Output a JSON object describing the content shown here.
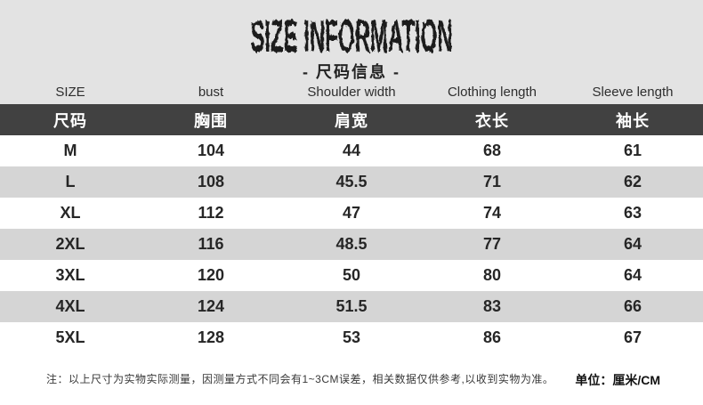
{
  "header": {
    "title": "SIZE INFORMATION",
    "subtitle": "- 尺码信息 -"
  },
  "chart_data": {
    "type": "table",
    "title": "SIZE INFORMATION",
    "subtitle_cn": "尺码信息",
    "columns_en": [
      "SIZE",
      "bust",
      "Shoulder width",
      "Clothing length",
      "Sleeve length"
    ],
    "columns_cn": [
      "尺码",
      "胸围",
      "肩宽",
      "衣长",
      "袖长"
    ],
    "rows": [
      [
        "M",
        "104",
        "44",
        "68",
        "61"
      ],
      [
        "L",
        "108",
        "45.5",
        "71",
        "62"
      ],
      [
        "XL",
        "112",
        "47",
        "74",
        "63"
      ],
      [
        "2XL",
        "116",
        "48.5",
        "77",
        "64"
      ],
      [
        "3XL",
        "120",
        "50",
        "80",
        "64"
      ],
      [
        "4XL",
        "124",
        "51.5",
        "83",
        "66"
      ],
      [
        "5XL",
        "128",
        "53",
        "86",
        "67"
      ]
    ],
    "unit_label": "厘米/CM"
  },
  "footer": {
    "note": "注：以上尺寸为实物实际测量，因测量方式不同会有1~3CM误差，相关数据仅供参考,以收到实物为准。",
    "unit": "单位：厘米/CM"
  },
  "colors": {
    "top_section_bg": "#e3e3e3",
    "header_bar_bg": "#414141",
    "row_alt_bg": "#d5d5d5",
    "row_bg": "#ffffff",
    "text_dark": "#262626",
    "header_text": "#ffffff"
  }
}
